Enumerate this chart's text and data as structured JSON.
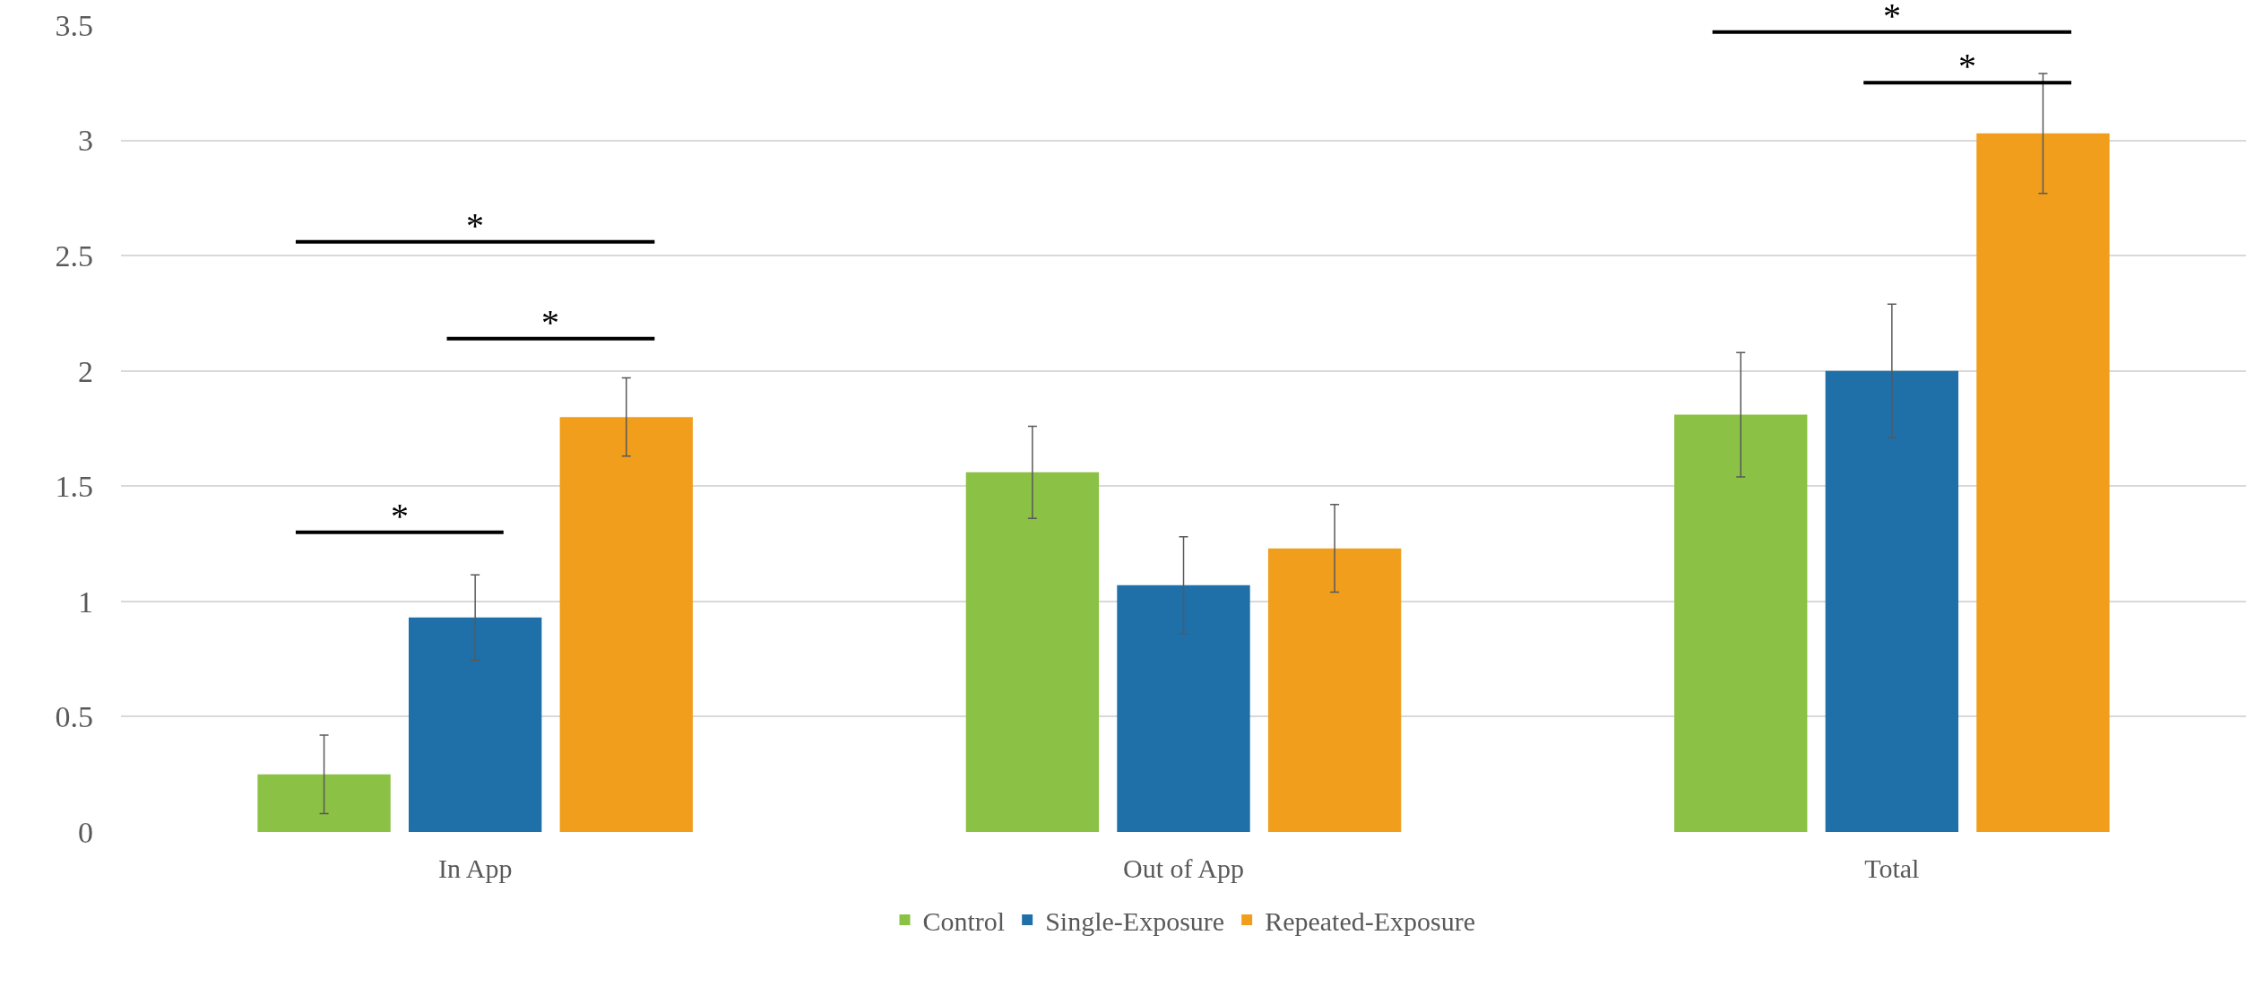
{
  "chart_data": {
    "type": "bar",
    "categories": [
      "In App",
      "Out of App",
      "Total"
    ],
    "series": [
      {
        "name": "Control",
        "color": "#8bc144",
        "values": [
          0.25,
          1.56,
          1.81
        ],
        "errors": [
          0.17,
          0.2,
          0.27
        ]
      },
      {
        "name": "Single-Exposure",
        "color": "#1f6fa8",
        "values": [
          0.93,
          1.07,
          2.0
        ],
        "errors": [
          0.185,
          0.21,
          0.29
        ]
      },
      {
        "name": "Repeated-Exposure",
        "color": "#f09e1c",
        "values": [
          1.8,
          1.23,
          3.03
        ],
        "errors": [
          0.17,
          0.19,
          0.26
        ]
      }
    ],
    "ylim": [
      0,
      3.5
    ],
    "yticks": [
      0,
      0.5,
      1,
      1.5,
      2,
      2.5,
      3,
      3.5
    ],
    "grid": "y",
    "legend": "bottom",
    "annotations": [
      "*",
      "*",
      "*",
      "*",
      "*"
    ]
  }
}
